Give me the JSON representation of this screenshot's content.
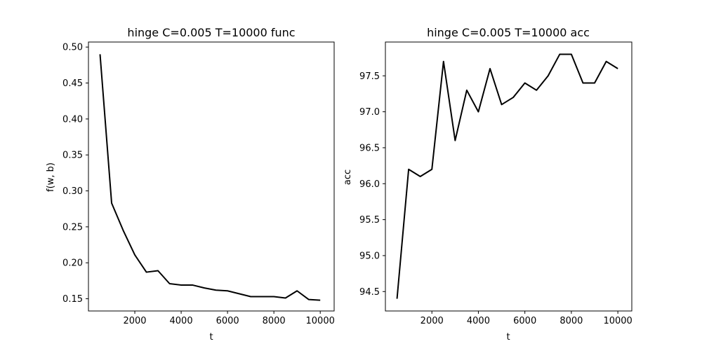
{
  "chart_data": [
    {
      "type": "line",
      "title": "hinge C=0.005 T=10000 func",
      "xlabel": "t",
      "ylabel": "f(w, b)",
      "xlim": [
        0,
        10600
      ],
      "ylim": [
        0.133,
        0.507
      ],
      "xticks": [
        2000,
        4000,
        6000,
        8000,
        10000
      ],
      "yticks": [
        0.15,
        0.2,
        0.25,
        0.3,
        0.35,
        0.4,
        0.45,
        0.5
      ],
      "ytick_decimals": 2,
      "series": [
        {
          "color": "#000000",
          "x": [
            500,
            1000,
            1500,
            2000,
            2500,
            3000,
            3500,
            4000,
            4500,
            5000,
            5500,
            6000,
            6500,
            7000,
            7500,
            8000,
            8500,
            9000,
            9500,
            10000
          ],
          "y": [
            0.49,
            0.283,
            0.245,
            0.211,
            0.187,
            0.189,
            0.171,
            0.169,
            0.169,
            0.165,
            0.162,
            0.161,
            0.157,
            0.153,
            0.153,
            0.153,
            0.151,
            0.161,
            0.149,
            0.148
          ]
        }
      ],
      "grid": false
    },
    {
      "type": "line",
      "title": "hinge C=0.005 T=10000 acc",
      "xlabel": "t",
      "ylabel": "acc",
      "xlim": [
        0,
        10600
      ],
      "ylim": [
        94.23,
        97.97
      ],
      "xticks": [
        2000,
        4000,
        6000,
        8000,
        10000
      ],
      "yticks": [
        94.5,
        95.0,
        95.5,
        96.0,
        96.5,
        97.0,
        97.5
      ],
      "ytick_decimals": 1,
      "series": [
        {
          "color": "#000000",
          "x": [
            500,
            1000,
            1500,
            2000,
            2500,
            3000,
            3500,
            4000,
            4500,
            5000,
            5500,
            6000,
            6500,
            7000,
            7500,
            8000,
            8500,
            9000,
            9500,
            10000
          ],
          "y": [
            94.4,
            96.2,
            96.1,
            96.2,
            97.7,
            96.6,
            97.3,
            97.0,
            97.6,
            97.1,
            97.2,
            97.4,
            97.3,
            97.5,
            97.8,
            97.8,
            97.4,
            97.4,
            97.7,
            97.6
          ]
        }
      ],
      "grid": false
    }
  ]
}
